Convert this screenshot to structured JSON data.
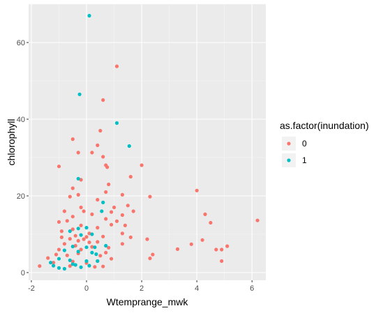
{
  "chart_data": {
    "type": "scatter",
    "xlabel": "Wtemprange_mwk",
    "ylabel": "chlorophyll",
    "xlim": [
      -2.1,
      6.5
    ],
    "ylim": [
      -2,
      70
    ],
    "x_ticks": [
      -2,
      0,
      2,
      4,
      6
    ],
    "y_ticks": [
      0,
      20,
      40,
      60
    ],
    "grid": true,
    "legend": {
      "title": "as.factor(inundation)",
      "position": "right"
    },
    "series": [
      {
        "name": "0",
        "color": "#F8766D",
        "points": [
          [
            1.1,
            53.8
          ],
          [
            0.6,
            45.0
          ],
          [
            0.5,
            37.0
          ],
          [
            -0.5,
            34.8
          ],
          [
            0.4,
            33.2
          ],
          [
            -0.3,
            31.3
          ],
          [
            0.2,
            31.3
          ],
          [
            0.6,
            30.2
          ],
          [
            0.7,
            28.0
          ],
          [
            0.75,
            27.5
          ],
          [
            -1.0,
            27.7
          ],
          [
            2.0,
            28.0
          ],
          [
            1.6,
            25.0
          ],
          [
            -0.2,
            24.2
          ],
          [
            0.8,
            23.0
          ],
          [
            -0.5,
            22.0
          ],
          [
            0.7,
            21.0
          ],
          [
            -0.3,
            20.3
          ],
          [
            1.3,
            20.3
          ],
          [
            -0.6,
            19.8
          ],
          [
            0.4,
            19.0
          ],
          [
            1.5,
            17.5
          ],
          [
            1.0,
            17.0
          ],
          [
            -0.2,
            17.0
          ],
          [
            1.7,
            16.0
          ],
          [
            2.3,
            19.8
          ],
          [
            4.0,
            21.4
          ],
          [
            4.3,
            15.2
          ],
          [
            -0.8,
            16.0
          ],
          [
            0.2,
            15.2
          ],
          [
            1.3,
            15.0
          ],
          [
            0.7,
            14.0
          ],
          [
            -0.7,
            13.5
          ],
          [
            1.1,
            13.4
          ],
          [
            0.9,
            12.5
          ],
          [
            1.4,
            12.3
          ],
          [
            -0.2,
            12.3
          ],
          [
            0.4,
            11.7
          ],
          [
            -0.5,
            11.3
          ],
          [
            -0.9,
            10.8
          ],
          [
            0.1,
            10.2
          ],
          [
            1.3,
            10.2
          ],
          [
            0.0,
            9.3
          ],
          [
            -0.4,
            9.6
          ],
          [
            0.6,
            9.4
          ],
          [
            1.6,
            9.2
          ],
          [
            -0.1,
            8.7
          ],
          [
            2.2,
            8.7
          ],
          [
            3.8,
            7.4
          ],
          [
            4.2,
            8.5
          ],
          [
            5.1,
            6.9
          ],
          [
            4.5,
            13.0
          ],
          [
            6.2,
            13.6
          ],
          [
            4.9,
            6.0
          ],
          [
            4.7,
            6.0
          ],
          [
            3.3,
            6.1
          ],
          [
            2.4,
            4.7
          ],
          [
            2.3,
            3.7
          ],
          [
            4.9,
            3.0
          ],
          [
            -0.8,
            7.5
          ],
          [
            -0.4,
            7.0
          ],
          [
            0.2,
            6.7
          ],
          [
            1.3,
            7.5
          ],
          [
            -1.0,
            6.0
          ],
          [
            0.7,
            5.2
          ],
          [
            0.9,
            3.6
          ],
          [
            0.4,
            3.0
          ],
          [
            -0.5,
            2.9
          ],
          [
            0.0,
            2.5
          ],
          [
            -1.7,
            1.7
          ],
          [
            -1.2,
            2.6
          ],
          [
            -0.6,
            1.7
          ],
          [
            0.3,
            1.5
          ],
          [
            0.6,
            1.6
          ],
          [
            -1.4,
            3.8
          ],
          [
            -0.7,
            4.5
          ],
          [
            -0.3,
            5.0
          ],
          [
            0.5,
            4.4
          ],
          [
            -0.2,
            6.0
          ],
          [
            -1.1,
            4.7
          ],
          [
            0.8,
            6.5
          ],
          [
            -0.9,
            9.2
          ],
          [
            -0.3,
            8.3
          ],
          [
            0.1,
            7.9
          ],
          [
            -0.6,
            8.8
          ],
          [
            0.4,
            8.0
          ],
          [
            -1.0,
            13.2
          ],
          [
            -0.5,
            14.6
          ],
          [
            -0.1,
            16.0
          ],
          [
            0.9,
            15.8
          ]
        ]
      },
      {
        "name": "1",
        "color": "#00BFC4",
        "points": [
          [
            0.1,
            67.0
          ],
          [
            -0.25,
            46.5
          ],
          [
            1.1,
            39.0
          ],
          [
            1.55,
            33.0
          ],
          [
            -0.3,
            24.5
          ],
          [
            0.6,
            18.3
          ],
          [
            0.55,
            16.0
          ],
          [
            -0.3,
            11.5
          ],
          [
            -0.6,
            10.8
          ],
          [
            0.0,
            11.7
          ],
          [
            0.2,
            10.0
          ],
          [
            -0.2,
            9.8
          ],
          [
            0.7,
            7.0
          ],
          [
            -0.5,
            6.8
          ],
          [
            0.0,
            6.6
          ],
          [
            0.3,
            6.6
          ],
          [
            -0.8,
            5.8
          ],
          [
            -0.3,
            5.5
          ],
          [
            0.2,
            5.2
          ],
          [
            -1.0,
            3.6
          ],
          [
            -0.6,
            3.2
          ],
          [
            0.4,
            3.0
          ],
          [
            -1.3,
            2.6
          ],
          [
            -0.4,
            2.0
          ],
          [
            0.1,
            1.8
          ],
          [
            -1.0,
            1.2
          ],
          [
            -0.2,
            1.4
          ],
          [
            -0.8,
            1.0
          ],
          [
            -0.5,
            2.2
          ],
          [
            0.0,
            3.0
          ],
          [
            -1.2,
            1.8
          ],
          [
            0.35,
            4.8
          ]
        ]
      }
    ]
  }
}
